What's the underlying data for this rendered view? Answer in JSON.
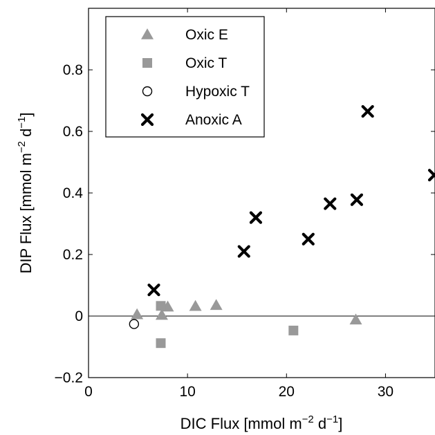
{
  "chart_data": {
    "type": "scatter",
    "xlabel": "DIC Flux [mmol m^-2 d^-1]",
    "ylabel": "DIP Flux [mmol m^-2 d^-1]",
    "xlim": [
      0,
      35
    ],
    "ylim": [
      -0.2,
      1.0
    ],
    "xticks": [
      "0",
      "10",
      "20",
      "30"
    ],
    "yticks": [
      "−0.2",
      "0",
      "0.2",
      "0.4",
      "0.6",
      "0.8"
    ],
    "legend_position": "top-left",
    "grid": false,
    "reference_line_y": 0,
    "series": [
      {
        "name": "Oxic E",
        "marker": "triangle",
        "color": "#999999",
        "points": [
          {
            "x": 4.9,
            "y": 0.005
          },
          {
            "x": 7.4,
            "y": 0.003
          },
          {
            "x": 8.0,
            "y": 0.03
          },
          {
            "x": 10.8,
            "y": 0.032
          },
          {
            "x": 12.9,
            "y": 0.035
          },
          {
            "x": 27.0,
            "y": -0.012
          }
        ]
      },
      {
        "name": "Oxic T",
        "marker": "square",
        "color": "#999999",
        "points": [
          {
            "x": 7.3,
            "y": 0.033
          },
          {
            "x": 7.3,
            "y": -0.088
          },
          {
            "x": 20.7,
            "y": -0.047
          }
        ]
      },
      {
        "name": "Hypoxic T",
        "marker": "circle",
        "color": "#000000",
        "points": [
          {
            "x": 4.6,
            "y": -0.026
          }
        ]
      },
      {
        "name": "Anoxic A",
        "marker": "x",
        "color": "#000000",
        "points": [
          {
            "x": 6.6,
            "y": 0.085
          },
          {
            "x": 15.7,
            "y": 0.21
          },
          {
            "x": 16.9,
            "y": 0.32
          },
          {
            "x": 22.2,
            "y": 0.25
          },
          {
            "x": 24.4,
            "y": 0.365
          },
          {
            "x": 27.1,
            "y": 0.378
          },
          {
            "x": 28.2,
            "y": 0.665
          },
          {
            "x": 35.0,
            "y": 0.458
          }
        ]
      }
    ]
  }
}
